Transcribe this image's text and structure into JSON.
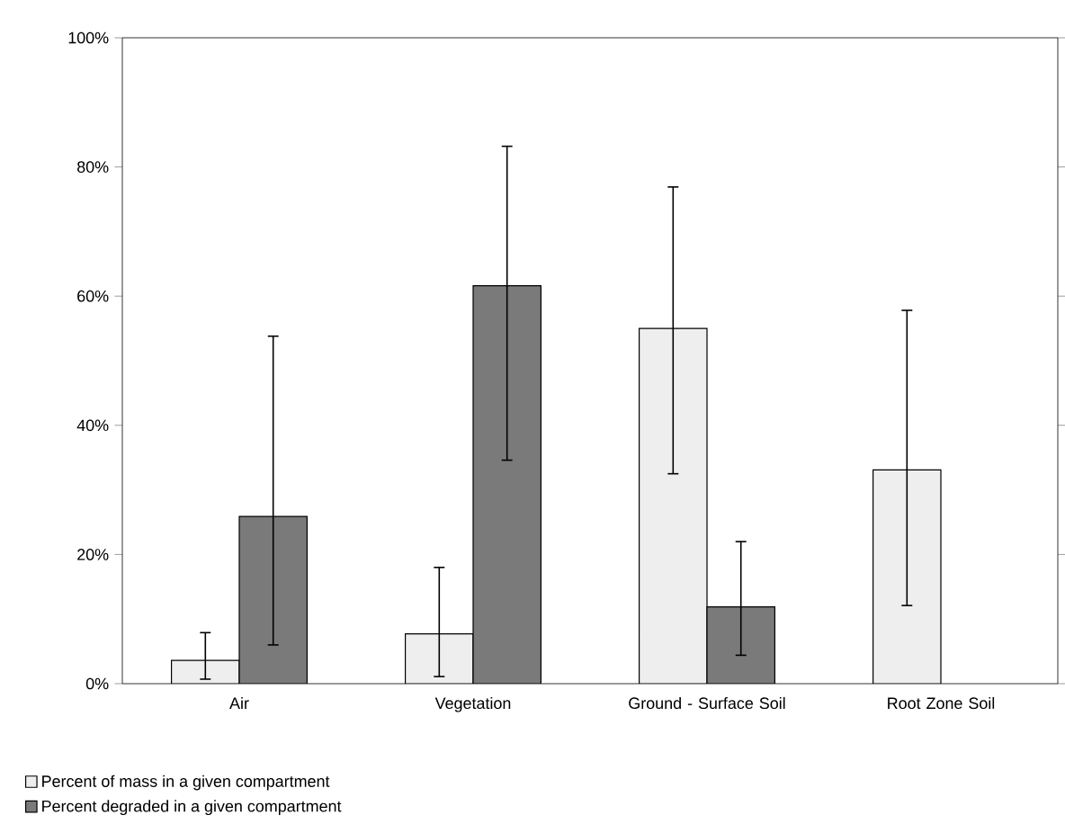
{
  "chart_data": {
    "type": "bar",
    "categories": [
      "Air",
      "Vegetation",
      "Ground - Surface Soil",
      "Root Zone Soil"
    ],
    "series": [
      {
        "name": "Percent of mass in a given compartment",
        "color": "#eeeeee",
        "values": [
          3.6,
          7.7,
          55.0,
          33.1
        ],
        "errors": [
          [
            0.7,
            7.9
          ],
          [
            1.1,
            18.0
          ],
          [
            32.5,
            76.9
          ],
          [
            12.1,
            57.8
          ]
        ]
      },
      {
        "name": "Percent degraded in a given compartment",
        "color": "#7a7a7a",
        "values": [
          25.9,
          61.6,
          11.9,
          null
        ],
        "errors": [
          [
            6.0,
            53.8
          ],
          [
            34.6,
            83.2
          ],
          [
            4.4,
            22.0
          ],
          null
        ]
      }
    ],
    "ylim": [
      0,
      100
    ],
    "yticks": [
      {
        "value": 0,
        "label": "0%"
      },
      {
        "value": 20,
        "label": "20%"
      },
      {
        "value": 40,
        "label": "40%"
      },
      {
        "value": 60,
        "label": "60%"
      },
      {
        "value": 80,
        "label": "80%"
      },
      {
        "value": 100,
        "label": "100%"
      }
    ],
    "grid": false,
    "legend": "bottom left"
  }
}
